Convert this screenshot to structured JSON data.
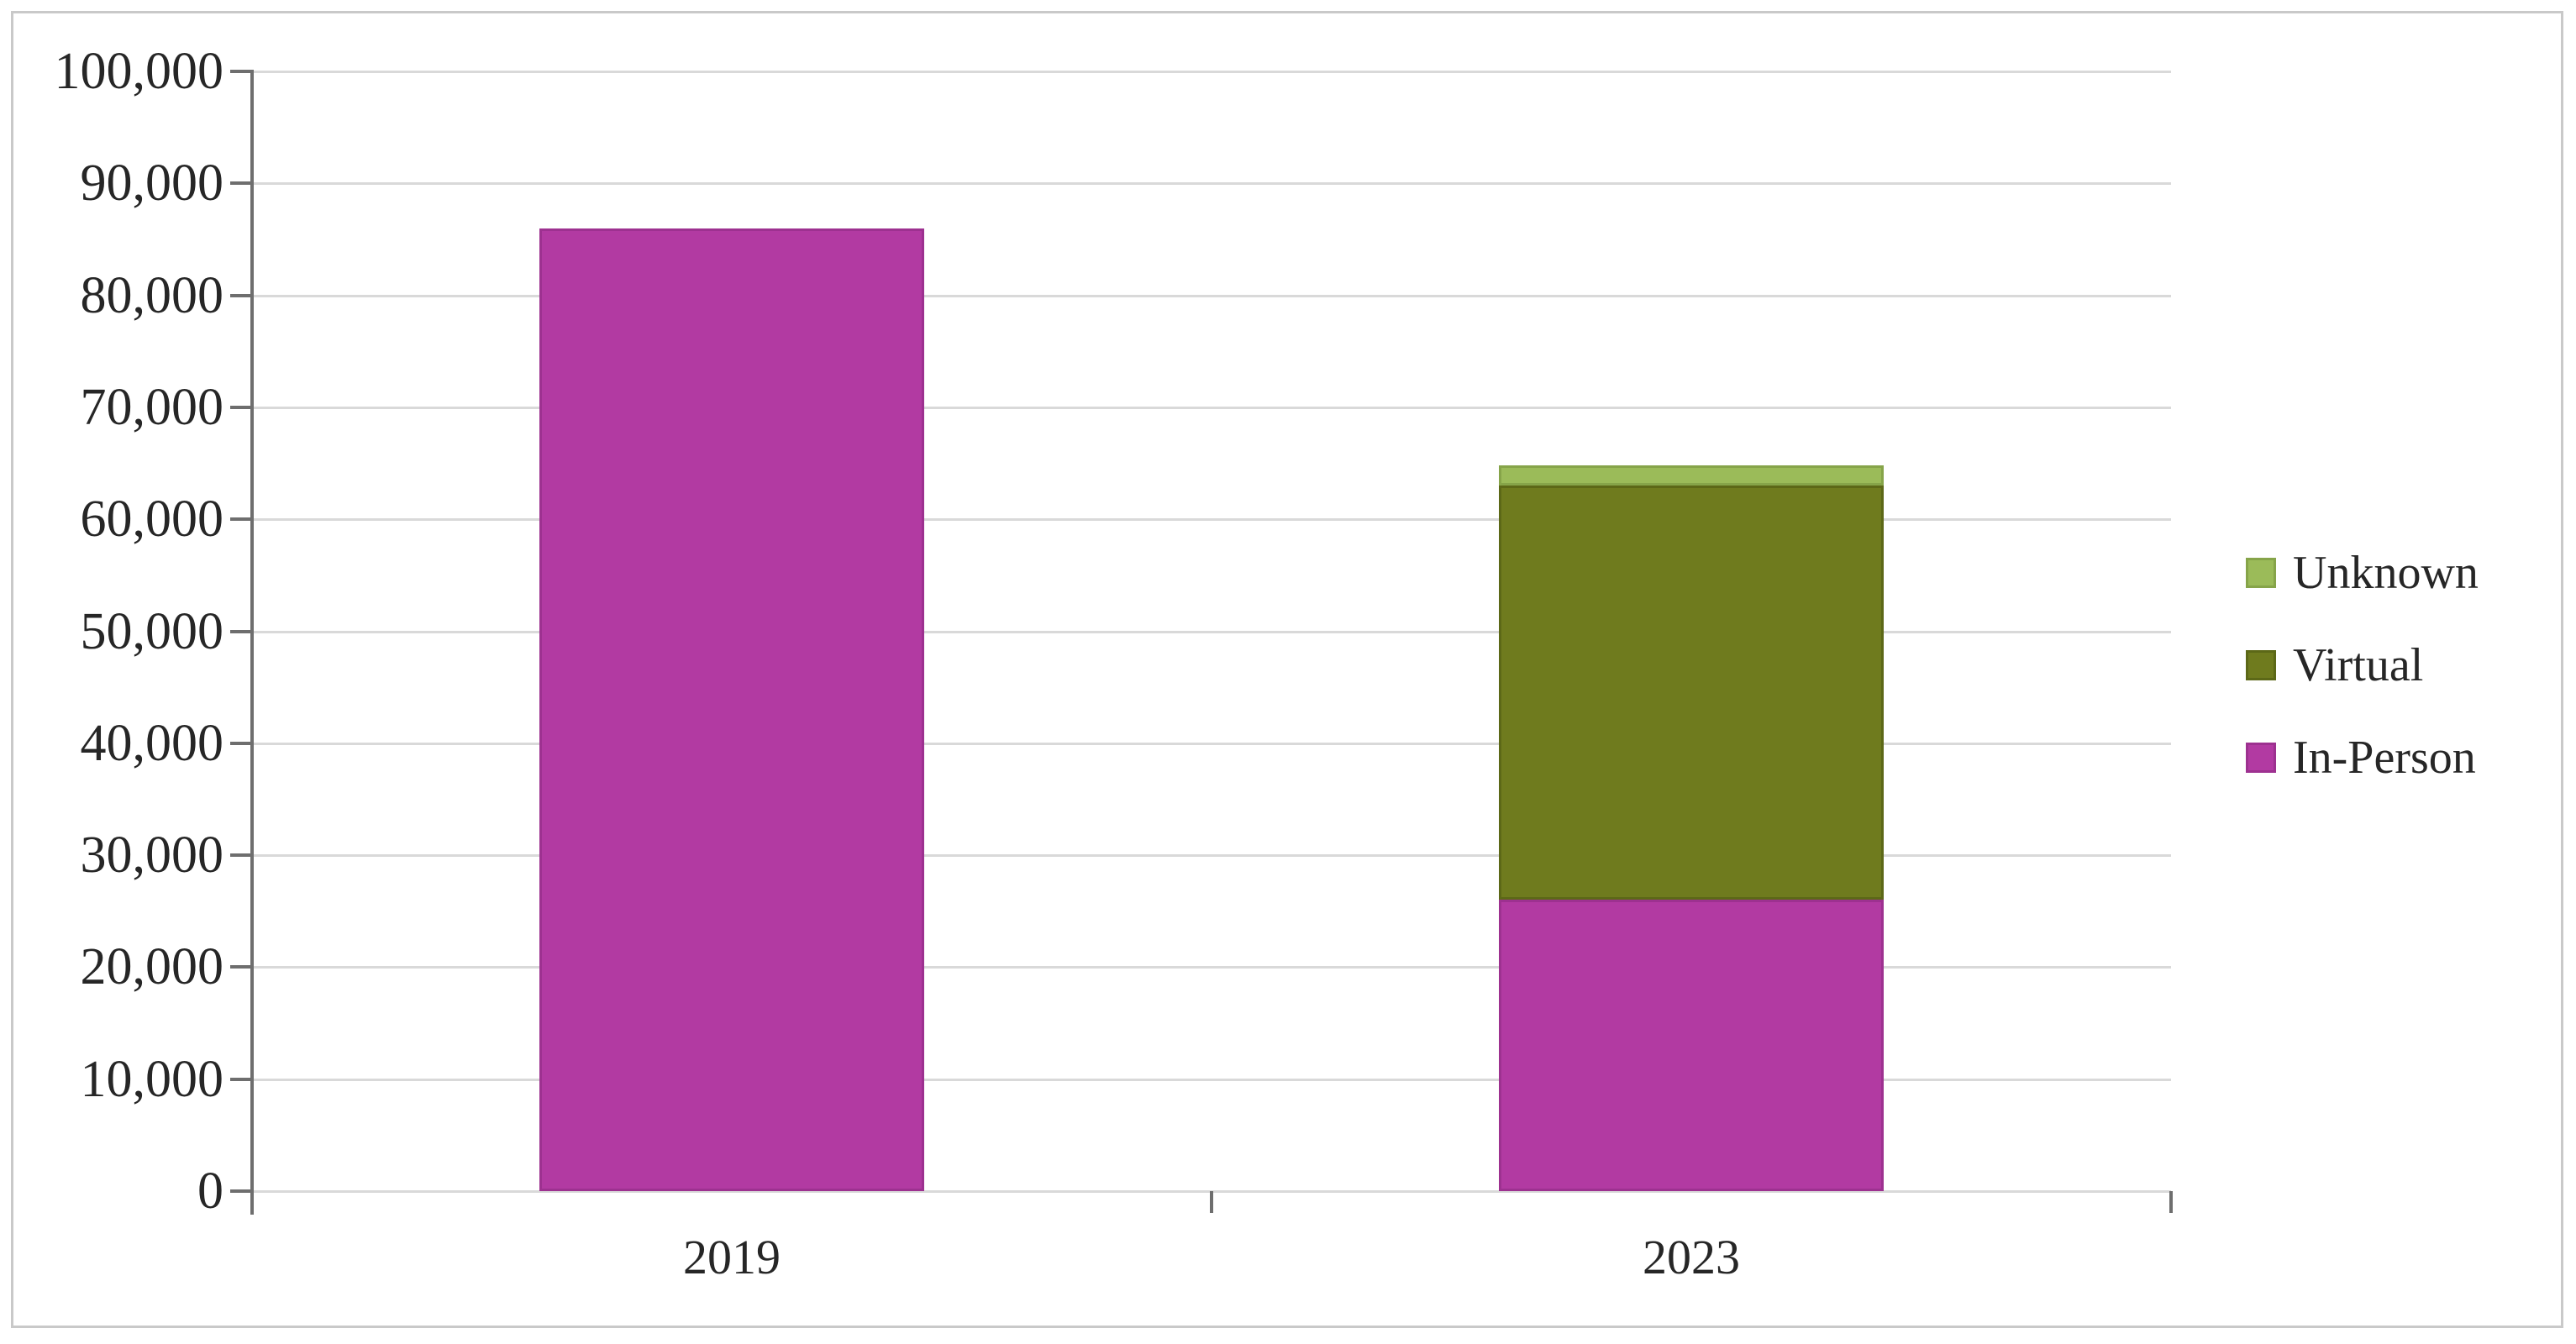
{
  "figure": {
    "background": "#FFFFFF",
    "border_color": "#C9C9C9"
  },
  "chart_data": {
    "type": "bar",
    "stacked": true,
    "title": "",
    "xlabel": "",
    "ylabel": "",
    "categories": [
      "2019",
      "2023"
    ],
    "series": [
      {
        "name": "In-Person",
        "color": "#B23AA2",
        "edge_color": "#9D3190",
        "values": [
          86000,
          26000
        ]
      },
      {
        "name": "Virtual",
        "color": "#6F7B1E",
        "edge_color": "#5C6817",
        "values": [
          0,
          37000
        ]
      },
      {
        "name": "Unknown",
        "color": "#9BBB59",
        "edge_color": "#86A449",
        "values": [
          0,
          1800
        ]
      }
    ],
    "ylim": [
      0,
      100000
    ],
    "y_step": 10000,
    "y_tick_labels": [
      "0",
      "10,000",
      "20,000",
      "30,000",
      "40,000",
      "50,000",
      "60,000",
      "70,000",
      "80,000",
      "90,000",
      "100,000"
    ],
    "grid": true,
    "gridline_color": "#D9D9D9",
    "axis_color": "#6E6E6E",
    "text_color": "#262626",
    "legend": {
      "position": "right",
      "entries": [
        "Unknown",
        "Virtual",
        "In-Person"
      ]
    }
  }
}
